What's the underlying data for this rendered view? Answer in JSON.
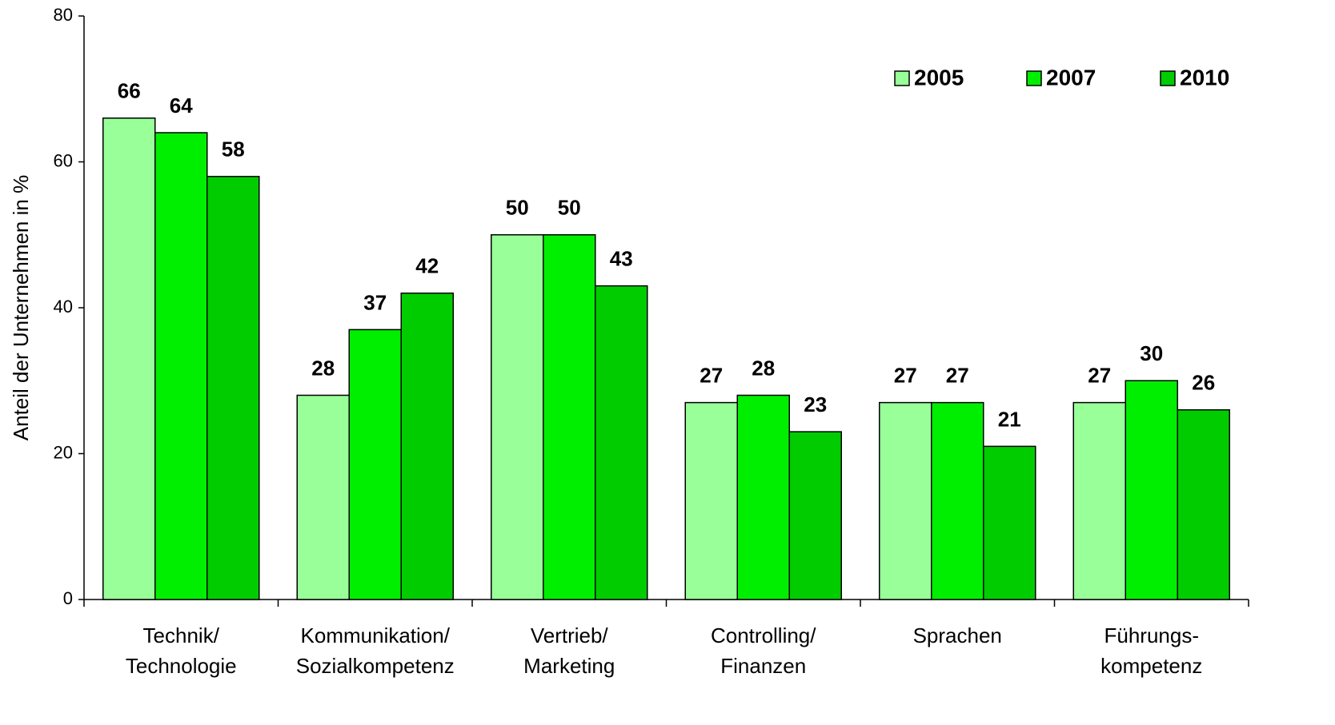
{
  "chart_data": {
    "type": "bar",
    "y_label": "Anteil der Unternehmen in %",
    "categories": [
      [
        "Technik/",
        "Technologie"
      ],
      [
        "Kommunikation/",
        "Sozialkompetenz"
      ],
      [
        "Vertrieb/",
        "Marketing"
      ],
      [
        "Controlling/",
        "Finanzen"
      ],
      [
        "Sprachen"
      ],
      [
        "Führungs-",
        "kompetenz"
      ]
    ],
    "series": [
      {
        "name": "2005",
        "color": "#99ff99",
        "values": [
          66,
          28,
          50,
          27,
          27,
          27
        ]
      },
      {
        "name": "2007",
        "color": "#00ee00",
        "values": [
          64,
          37,
          50,
          28,
          27,
          30
        ]
      },
      {
        "name": "2010",
        "color": "#00cc00",
        "values": [
          58,
          42,
          43,
          23,
          21,
          26
        ]
      }
    ],
    "ylim": [
      0,
      80
    ],
    "yticks": [
      0,
      20,
      40,
      60,
      80
    ],
    "grid": false,
    "legend": "top-right"
  }
}
